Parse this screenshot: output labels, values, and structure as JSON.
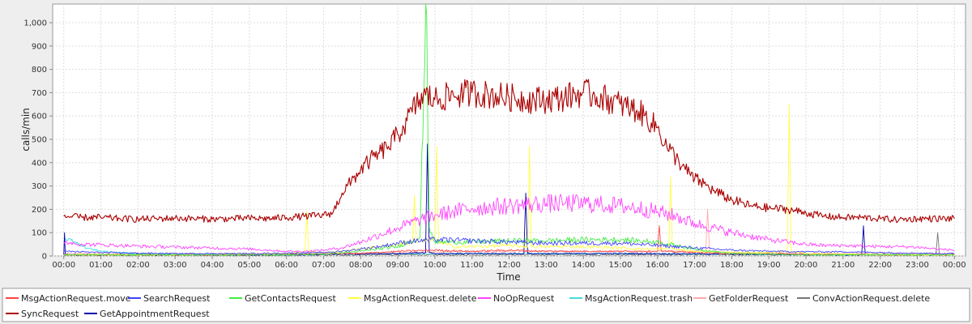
{
  "chart_data": {
    "type": "line",
    "title": "",
    "xlabel": "Time",
    "ylabel": "calls/min",
    "x_unit": "hours",
    "xlim": [
      -0.3,
      24.3
    ],
    "ylim": [
      0,
      1080
    ],
    "grid": true,
    "legend_position": "bottom",
    "x_ticks": [
      {
        "value": 0,
        "label": "00:00"
      },
      {
        "value": 1,
        "label": "01:00"
      },
      {
        "value": 2,
        "label": "02:00"
      },
      {
        "value": 3,
        "label": "03:00"
      },
      {
        "value": 4,
        "label": "04:00"
      },
      {
        "value": 5,
        "label": "05:00"
      },
      {
        "value": 6,
        "label": "06:00"
      },
      {
        "value": 7,
        "label": "07:00"
      },
      {
        "value": 8,
        "label": "08:00"
      },
      {
        "value": 9,
        "label": "09:00"
      },
      {
        "value": 10,
        "label": "10:00"
      },
      {
        "value": 11,
        "label": "11:00"
      },
      {
        "value": 12,
        "label": "12:00"
      },
      {
        "value": 13,
        "label": "13:00"
      },
      {
        "value": 14,
        "label": "14:00"
      },
      {
        "value": 15,
        "label": "15:00"
      },
      {
        "value": 16,
        "label": "16:00"
      },
      {
        "value": 17,
        "label": "17:00"
      },
      {
        "value": 18,
        "label": "18:00"
      },
      {
        "value": 19,
        "label": "19:00"
      },
      {
        "value": 20,
        "label": "20:00"
      },
      {
        "value": 21,
        "label": "21:00"
      },
      {
        "value": 22,
        "label": "22:00"
      },
      {
        "value": 23,
        "label": "23:00"
      },
      {
        "value": 24,
        "label": "00:00"
      }
    ],
    "y_ticks": [
      {
        "value": 0,
        "label": "0"
      },
      {
        "value": 100,
        "label": "100"
      },
      {
        "value": 200,
        "label": "200"
      },
      {
        "value": 300,
        "label": "300"
      },
      {
        "value": 400,
        "label": "400"
      },
      {
        "value": 500,
        "label": "500"
      },
      {
        "value": 600,
        "label": "600"
      },
      {
        "value": 700,
        "label": "700"
      },
      {
        "value": 800,
        "label": "800"
      },
      {
        "value": 900,
        "label": "900"
      },
      {
        "value": 1000,
        "label": "1,000"
      }
    ],
    "series": [
      {
        "name": "SyncRequest",
        "color": "#aa0000",
        "x": [
          0,
          0.5,
          1,
          1.5,
          2,
          2.5,
          3,
          3.5,
          4,
          4.5,
          5,
          5.5,
          6,
          6.5,
          7,
          7.25,
          7.5,
          7.75,
          8,
          8.25,
          8.5,
          8.75,
          9,
          9.25,
          9.5,
          9.75,
          10,
          10.5,
          11,
          11.5,
          12,
          12.5,
          13,
          13.5,
          14,
          14.25,
          14.5,
          15,
          15.5,
          16,
          16.25,
          16.5,
          16.75,
          17,
          17.25,
          17.5,
          17.75,
          18,
          18.5,
          19,
          19.5,
          20,
          20.5,
          21,
          21.5,
          22,
          22.5,
          23,
          23.5,
          24
        ],
        "y": [
          170,
          165,
          165,
          160,
          158,
          160,
          162,
          160,
          158,
          160,
          162,
          160,
          165,
          170,
          175,
          185,
          270,
          320,
          370,
          410,
          440,
          470,
          520,
          580,
          650,
          690,
          670,
          690,
          700,
          690,
          680,
          670,
          670,
          680,
          700,
          690,
          680,
          650,
          620,
          550,
          470,
          420,
          370,
          330,
          310,
          280,
          260,
          240,
          215,
          205,
          200,
          185,
          170,
          165,
          165,
          160,
          155,
          160,
          160,
          160
        ]
      },
      {
        "name": "NoOpRequest",
        "color": "#ff44ff",
        "x": [
          0,
          0.5,
          1,
          1.5,
          2,
          2.5,
          3,
          3.5,
          4,
          4.5,
          5,
          5.5,
          6,
          6.5,
          7,
          7.5,
          8,
          8.5,
          9,
          9.5,
          10,
          10.5,
          11,
          11.5,
          12,
          12.5,
          13,
          13.5,
          14,
          14.5,
          15,
          15.5,
          16,
          16.5,
          17,
          17.5,
          18,
          18.5,
          19,
          19.5,
          20,
          20.5,
          21,
          21.5,
          22,
          22.5,
          23,
          23.5,
          24
        ],
        "y": [
          60,
          50,
          48,
          45,
          42,
          40,
          38,
          36,
          34,
          32,
          30,
          25,
          20,
          20,
          25,
          35,
          60,
          90,
          120,
          150,
          175,
          190,
          205,
          210,
          215,
          220,
          225,
          225,
          225,
          220,
          215,
          205,
          190,
          170,
          140,
          120,
          100,
          85,
          70,
          60,
          50,
          45,
          45,
          42,
          40,
          40,
          38,
          30,
          25
        ]
      },
      {
        "name": "SearchRequest",
        "color": "#4444ff",
        "x": [
          0,
          1,
          2,
          3,
          4,
          5,
          6,
          7,
          7.5,
          8,
          8.5,
          9,
          9.5,
          10,
          11,
          12,
          13,
          14,
          15,
          16,
          17,
          18,
          19,
          20,
          21,
          22,
          23,
          24
        ],
        "y": [
          20,
          15,
          12,
          10,
          10,
          10,
          12,
          15,
          20,
          30,
          40,
          55,
          65,
          70,
          65,
          60,
          55,
          55,
          55,
          45,
          35,
          25,
          20,
          18,
          18,
          15,
          12,
          10
        ]
      },
      {
        "name": "GetContactsRequest",
        "color": "#44ee44",
        "x": [
          0,
          6,
          7,
          8,
          9,
          9.6,
          9.7,
          9.78,
          9.85,
          10,
          11,
          12,
          13,
          14,
          15,
          16,
          17,
          18,
          20,
          22,
          24
        ],
        "y": [
          5,
          5,
          8,
          20,
          40,
          80,
          700,
          1030,
          120,
          60,
          60,
          65,
          65,
          70,
          70,
          60,
          30,
          10,
          5,
          5,
          5
        ]
      },
      {
        "name": "MsgActionRequest.delete",
        "color": "#ffff44",
        "x": [
          0,
          3,
          6,
          6.5,
          6.55,
          6.6,
          7,
          7.5,
          8,
          8.5,
          9,
          9.4,
          9.45,
          9.5,
          10,
          10.05,
          10.1,
          10.5,
          11,
          12,
          12.5,
          12.55,
          12.6,
          13,
          14,
          15,
          15.5,
          16,
          16.3,
          16.35,
          16.4,
          17,
          18,
          19,
          19.5,
          19.55,
          19.6,
          20,
          22,
          24
        ],
        "y": [
          5,
          5,
          10,
          20,
          190,
          20,
          15,
          20,
          30,
          40,
          50,
          60,
          260,
          60,
          70,
          470,
          60,
          40,
          40,
          45,
          40,
          470,
          40,
          40,
          40,
          35,
          30,
          30,
          30,
          340,
          30,
          20,
          15,
          15,
          20,
          650,
          20,
          10,
          5,
          5
        ]
      },
      {
        "name": "MsgActionRequest.move",
        "color": "#ff4444",
        "x": [
          0,
          4,
          8,
          9,
          10,
          11,
          12,
          13,
          14,
          15,
          16,
          16,
          16.05,
          16.1,
          17,
          18,
          20,
          22,
          24
        ],
        "y": [
          5,
          5,
          10,
          20,
          25,
          20,
          25,
          20,
          20,
          20,
          20,
          20,
          130,
          20,
          15,
          10,
          8,
          5,
          5
        ]
      },
      {
        "name": "GetAppointmentRequest",
        "color": "#0000aa",
        "x": [
          0,
          0.02,
          0.04,
          1,
          6,
          9,
          9.75,
          9.8,
          9.85,
          10,
          12,
          12.4,
          12.45,
          12.5,
          13,
          14,
          16,
          18,
          21,
          21.5,
          21.55,
          21.6,
          22,
          24
        ],
        "y": [
          5,
          100,
          5,
          5,
          5,
          10,
          15,
          480,
          15,
          10,
          10,
          10,
          270,
          10,
          10,
          10,
          10,
          8,
          5,
          5,
          130,
          5,
          5,
          5
        ]
      },
      {
        "name": "MsgActionRequest.trash",
        "color": "#44dddd",
        "x": [
          0,
          0.5,
          1,
          2,
          6,
          9,
          12,
          15,
          18,
          21,
          24
        ],
        "y": [
          80,
          40,
          20,
          10,
          5,
          10,
          10,
          10,
          8,
          5,
          5
        ]
      },
      {
        "name": "GetFolderRequest",
        "color": "#ffaaaa",
        "x": [
          0,
          6,
          9,
          12,
          15,
          17.3,
          17.35,
          17.4,
          18,
          21,
          24
        ],
        "y": [
          10,
          10,
          15,
          20,
          20,
          20,
          200,
          20,
          15,
          10,
          10
        ]
      },
      {
        "name": "ConvActionRequest.delete",
        "color": "#777777",
        "x": [
          0,
          6,
          9,
          12,
          15,
          18,
          21,
          23.5,
          23.55,
          23.6,
          24
        ],
        "y": [
          3,
          3,
          5,
          5,
          5,
          5,
          5,
          5,
          100,
          5,
          5
        ]
      }
    ]
  }
}
